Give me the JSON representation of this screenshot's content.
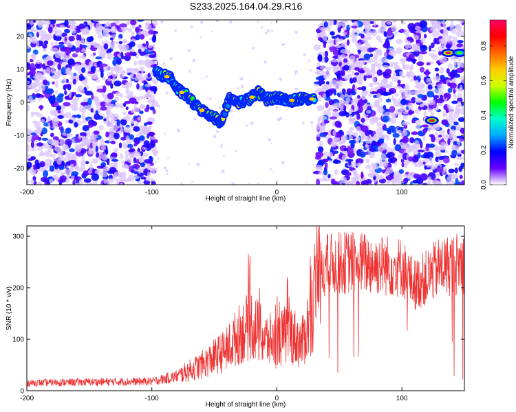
{
  "title": "S233.2025.164.04.29.R16",
  "chart_data": [
    {
      "type": "heatmap",
      "id": "spectrogram",
      "xlabel": "Height of straight line (km)",
      "ylabel": "Frequency (Hz)",
      "xlim": [
        -200,
        150
      ],
      "ylim": [
        -25,
        25
      ],
      "xticks": [
        -200,
        -100,
        0,
        100
      ],
      "yticks": [
        -20,
        -10,
        0,
        10,
        20
      ],
      "colorbar": {
        "label": "Normalized spectral amplitude",
        "range": [
          0,
          0.95
        ],
        "ticks": [
          0.0,
          0.2,
          0.4,
          0.6,
          0.8
        ],
        "tick_labels": [
          "0.0",
          "0.2",
          "0.4",
          "0.6",
          "0.8"
        ],
        "colormap": [
          "#ffffff",
          "#6600ff",
          "#0000ff",
          "#00aaff",
          "#00ffcc",
          "#00ff00",
          "#ccff00",
          "#ffcc00",
          "#ff6600",
          "#ff0000",
          "#ff0066"
        ]
      },
      "noise_regions_km": [
        [
          -200,
          -97
        ],
        [
          32,
          150
        ]
      ],
      "quiet_region_km": [
        -97,
        32
      ],
      "signal_track": [
        {
          "x": -97,
          "y": 9
        },
        {
          "x": -90,
          "y": 8
        },
        {
          "x": -85,
          "y": 7.5
        },
        {
          "x": -80,
          "y": 4
        },
        {
          "x": -72,
          "y": 2
        },
        {
          "x": -65,
          "y": -1
        },
        {
          "x": -58,
          "y": -3
        },
        {
          "x": -52,
          "y": -4
        },
        {
          "x": -45,
          "y": -6
        },
        {
          "x": -38,
          "y": 1
        },
        {
          "x": -30,
          "y": 0
        },
        {
          "x": -22,
          "y": 1
        },
        {
          "x": -15,
          "y": 3
        },
        {
          "x": -8,
          "y": 1
        },
        {
          "x": 0,
          "y": 1.5
        },
        {
          "x": 10,
          "y": 0.5
        },
        {
          "x": 20,
          "y": 1
        },
        {
          "x": 30,
          "y": 1
        }
      ],
      "isolated_signals": [
        {
          "x": 124,
          "y": -5.5,
          "peak": 0.9
        },
        {
          "x": 137,
          "y": 15,
          "peak": 0.95
        },
        {
          "x": 146,
          "y": 15,
          "peak": 0.5
        }
      ]
    },
    {
      "type": "line",
      "id": "snr",
      "xlabel": "Height of straight line (km)",
      "ylabel": "SNR (10 * v/v)",
      "xlim": [
        -200,
        150
      ],
      "ylim": [
        0,
        320
      ],
      "xticks": [
        -200,
        -100,
        0,
        100
      ],
      "yticks": [
        0,
        100,
        200,
        300
      ],
      "color": "#ee3333",
      "envelope": {
        "x": [
          -200,
          -150,
          -100,
          -80,
          -60,
          -40,
          -30,
          -20,
          -10,
          0,
          10,
          20,
          30,
          35,
          40,
          60,
          80,
          100,
          110,
          120,
          130,
          140,
          150
        ],
        "y": [
          15,
          17,
          18,
          28,
          50,
          80,
          110,
          130,
          100,
          95,
          115,
          90,
          170,
          235,
          245,
          250,
          245,
          240,
          205,
          220,
          240,
          245,
          250
        ]
      }
    }
  ]
}
